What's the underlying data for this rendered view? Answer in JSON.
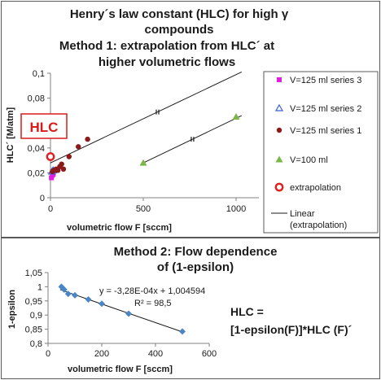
{
  "chart_data": [
    {
      "type": "scatter",
      "title": [
        "Henry´s law constant  (HLC) for high γ",
        "compounds",
        "Method 1: extrapolation from HLC´ at",
        "higher volumetric flows"
      ],
      "xlabel": "volumetric flow F [sccm]",
      "ylabel": "HLC´ [M/atm]",
      "xlim": [
        0,
        1150
      ],
      "ylim": [
        0,
        0.1
      ],
      "xticks": [
        "0",
        "500",
        "1000"
      ],
      "yticks": [
        "0",
        "0,02",
        "0,04",
        "0,06",
        "0,08",
        "0,1"
      ],
      "grid": false,
      "legend_position": "right",
      "callout": "HLC",
      "series": [
        {
          "name": "V=125 ml series 3",
          "color": "#e020e0",
          "marker": "square",
          "points": [
            [
              5,
              0.016
            ],
            [
              10,
              0.018
            ],
            [
              15,
              0.019
            ]
          ]
        },
        {
          "name": "V=125 ml series 2",
          "color": "#3a5fcd",
          "marker": "triangle-open",
          "points": [
            [
              8,
              0.021
            ],
            [
              14,
              0.022
            ]
          ]
        },
        {
          "name": "V=125 ml series 1",
          "color": "#8b1a1a",
          "marker": "circle",
          "points": [
            [
              10,
              0.021
            ],
            [
              20,
              0.022
            ],
            [
              30,
              0.023
            ],
            [
              40,
              0.022
            ],
            [
              50,
              0.025
            ],
            [
              60,
              0.027
            ],
            [
              70,
              0.023
            ],
            [
              100,
              0.033
            ],
            [
              150,
              0.041
            ],
            [
              200,
              0.047
            ]
          ]
        },
        {
          "name": "V=100 ml",
          "color": "#7ab648",
          "marker": "triangle",
          "points": [
            [
              500,
              0.028
            ],
            [
              1000,
              0.065
            ]
          ]
        },
        {
          "name": "extrapolation",
          "color": "#e02020",
          "marker": "circle-open",
          "points": [
            [
              0,
              0.033
            ]
          ]
        }
      ],
      "lines": [
        {
          "name": "Linear\n(extrapolation)",
          "color": "#1a1a1a",
          "from": [
            0,
            0.028
          ],
          "to": [
            1030,
            0.101
          ]
        },
        {
          "color": "#1a1a1a",
          "from": [
            500,
            0.028
          ],
          "to": [
            1030,
            0.066
          ]
        }
      ]
    },
    {
      "type": "scatter",
      "title": [
        "Method 2: Flow dependence",
        "of (1-epsilon)"
      ],
      "xlabel": "volumetric flow F [sccm]",
      "ylabel": "1-epsilon",
      "xlim": [
        0,
        600
      ],
      "ylim": [
        0.8,
        1.05
      ],
      "xticks": [
        "0",
        "200",
        "400",
        "600"
      ],
      "yticks": [
        "0,8",
        "0,85",
        "0,9",
        "0,95",
        "1",
        "1,05"
      ],
      "grid": false,
      "series": [
        {
          "color": "#4a86c5",
          "marker": "diamond",
          "points": [
            [
              50,
              1.0
            ],
            [
              60,
              0.99
            ],
            [
              75,
              0.975
            ],
            [
              100,
              0.97
            ],
            [
              150,
              0.955
            ],
            [
              200,
              0.94
            ],
            [
              300,
              0.905
            ],
            [
              500,
              0.842
            ]
          ]
        }
      ],
      "trendline": {
        "color": "#1a1a1a",
        "slope": -0.000328,
        "intercept": 1.004594,
        "x_from": 45,
        "x_to": 500
      },
      "annotations": [
        "y = -3,28E-04x + 1,004594",
        "R² = 98,5"
      ]
    }
  ],
  "formula": {
    "line1": "HLC =",
    "line2": "[1-epsilon(F)]*HLC (F)´"
  }
}
